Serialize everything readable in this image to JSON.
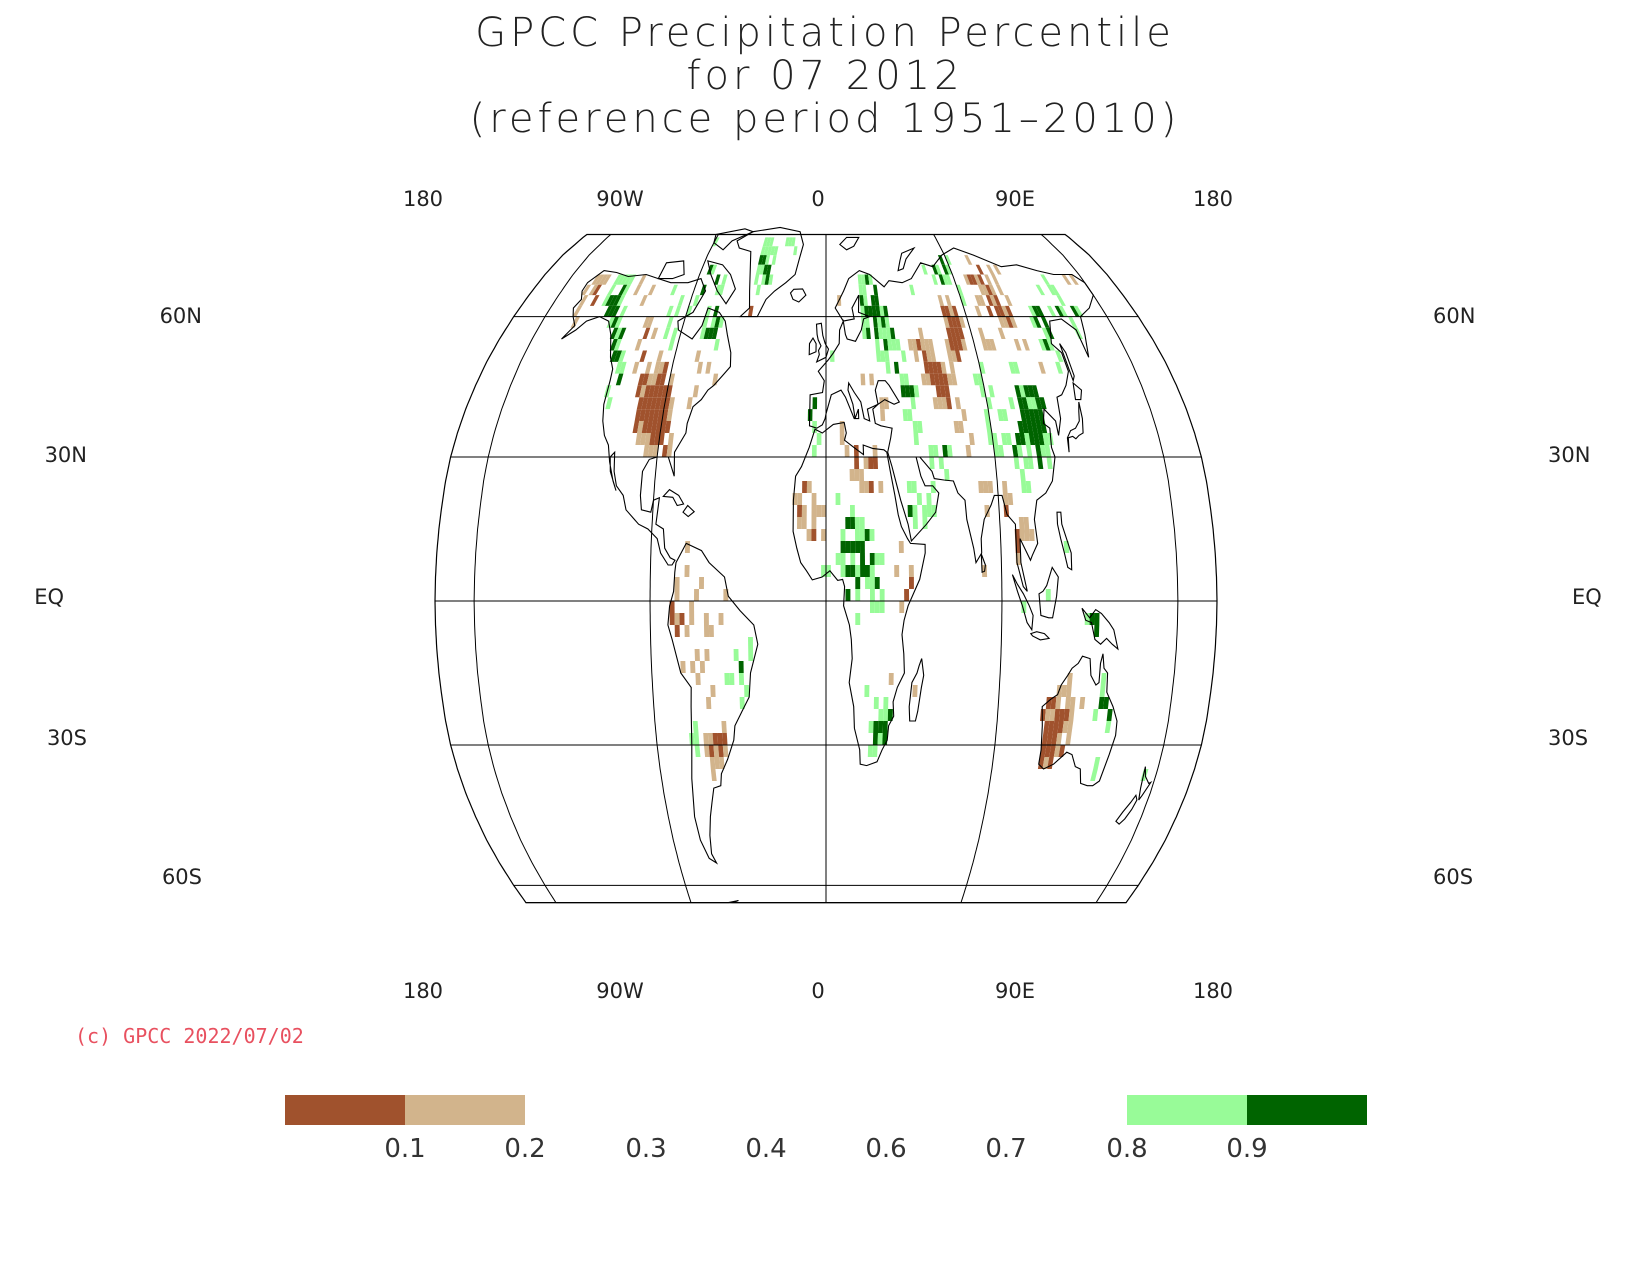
{
  "title": {
    "line1": "GPCC Precipitation Percentile",
    "line2": "for 07 2012",
    "line3": "(reference period 1951–2010)"
  },
  "map": {
    "projection": "robinson",
    "lon_labels_top": [
      "180",
      "90W",
      "0",
      "90E",
      "180"
    ],
    "lon_labels_bottom": [
      "180",
      "90W",
      "0",
      "90E",
      "180"
    ],
    "lat_labels_left": [
      "60N",
      "30N",
      "EQ",
      "30S",
      "60S"
    ],
    "lat_labels_right": [
      "60N",
      "30N",
      "EQ",
      "30S",
      "60S"
    ]
  },
  "copyright": "(c) GPCC 2022/07/02",
  "legend": {
    "colors": {
      "very_dry": "#a0522d",
      "dry": "#d2b48c",
      "wet": "#98fb98",
      "very_wet": "#006400"
    },
    "ticks": [
      "0.1",
      "0.2",
      "0.3",
      "0.4",
      "0.6",
      "0.7",
      "0.8",
      "0.9"
    ]
  }
}
